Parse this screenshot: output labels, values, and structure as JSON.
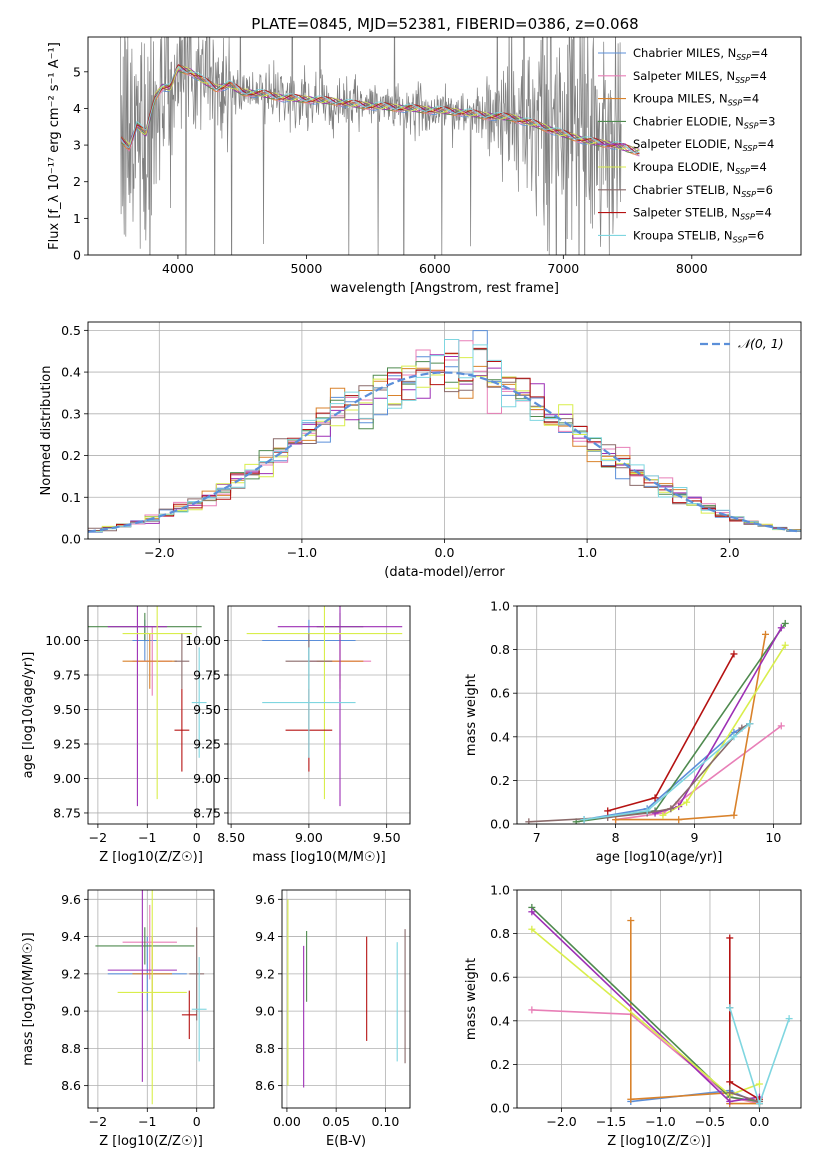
{
  "figure": {
    "title": "PLATE=0845, MJD=52381, FIBERID=0386, z=0.068"
  },
  "models": [
    {
      "name": "Chabrier MILES",
      "nssp": "4",
      "color": "#5b8fd9"
    },
    {
      "name": "Salpeter MILES",
      "nssp": "4",
      "color": "#e87fb7"
    },
    {
      "name": "Kroupa MILES",
      "nssp": "4",
      "color": "#d9822b"
    },
    {
      "name": "Chabrier ELODIE",
      "nssp": "3",
      "color": "#4f8a4f"
    },
    {
      "name": "Salpeter ELODIE",
      "nssp": "4",
      "color": "#9d2fb5"
    },
    {
      "name": "Kroupa ELODIE",
      "nssp": "4",
      "color": "#d9ee4c"
    },
    {
      "name": "Chabrier STELIB",
      "nssp": "6",
      "color": "#8a6a6a"
    },
    {
      "name": "Salpeter STELIB",
      "nssp": "4",
      "color": "#b51212"
    },
    {
      "name": "Kroupa STELIB",
      "nssp": "6",
      "color": "#7fd6e0"
    }
  ],
  "chart_data": [
    {
      "id": "spectrum",
      "type": "line",
      "xlabel": "wavelength [Angstrom, rest frame]",
      "ylabel": "Flux [f_λ 10⁻¹⁷ erg cm⁻² s⁻¹ A⁻¹]",
      "xlim": [
        3300,
        8850
      ],
      "ylim": [
        0,
        5.95
      ],
      "xticks": [
        4000,
        5000,
        6000,
        7000,
        8000
      ],
      "yticks": [
        0,
        1,
        2,
        3,
        4,
        5
      ],
      "grid": false,
      "legend": "top-right",
      "data_color": "#808080",
      "model_continuum": {
        "x": [
          3560,
          3620,
          3680,
          3750,
          3820,
          3880,
          3940,
          4000,
          4100,
          4200,
          4300,
          4400,
          4500,
          4650,
          4800,
          5000,
          5200,
          5400,
          5600,
          5800,
          6000,
          6200,
          6400,
          6600,
          6800,
          7000,
          7200,
          7400,
          7600
        ],
        "y": [
          3.15,
          2.95,
          3.55,
          3.3,
          4.3,
          4.6,
          4.55,
          5.1,
          5.0,
          4.75,
          4.55,
          4.65,
          4.45,
          4.4,
          4.3,
          4.25,
          4.2,
          4.1,
          4.05,
          4.0,
          3.95,
          3.9,
          3.8,
          3.75,
          3.55,
          3.3,
          3.1,
          3.0,
          2.8
        ]
      }
    },
    {
      "id": "residuals",
      "type": "histogram",
      "xlabel": "(data-model)/error",
      "ylabel": "Normed distribution",
      "xlim": [
        -2.5,
        2.5
      ],
      "ylim": [
        0,
        0.52
      ],
      "xticks": [
        -2,
        -1,
        0,
        1,
        2
      ],
      "yticks": [
        0.0,
        0.1,
        0.2,
        0.3,
        0.4,
        0.5
      ],
      "grid": true,
      "legend": "top-right",
      "legend_label": "𝒩(0, 1)",
      "reference_curve": "normal(0,1)",
      "bin_width": 0.1
    },
    {
      "id": "age_vs_z",
      "type": "errorbar",
      "xlabel": "Z [log10(Z/Z☉)]",
      "ylabel": "age [log10(age/yr)]",
      "xlim": [
        -2.2,
        0.35
      ],
      "ylim": [
        8.67,
        10.25
      ],
      "xticks": [
        -2,
        -1,
        0
      ],
      "yticks": [
        8.75,
        9.0,
        9.25,
        9.5,
        9.75,
        10.0
      ],
      "grid": true,
      "points": [
        {
          "model": 0,
          "x": -1.05,
          "y": 10.0,
          "xerr": 0.25,
          "yerr": 0.15
        },
        {
          "model": 1,
          "x": -0.9,
          "y": 9.85,
          "xerr": 0.4,
          "yerr": 0.25
        },
        {
          "model": 2,
          "x": -0.95,
          "y": 9.85,
          "xerr": 0.55,
          "yerr": 0.2
        },
        {
          "model": 3,
          "x": -1.05,
          "y": 10.1,
          "xerr": 1.15,
          "yerr": 0.1
        },
        {
          "model": 4,
          "x": -1.2,
          "y": 10.1,
          "xerr": 0.6,
          "yerr": 1.3
        },
        {
          "model": 5,
          "x": -0.8,
          "y": 10.05,
          "xerr": 0.7,
          "yerr": 1.2
        },
        {
          "model": 6,
          "x": -0.3,
          "y": 9.85,
          "xerr": 0.15,
          "yerr": 0.2
        },
        {
          "model": 7,
          "x": -0.3,
          "y": 9.35,
          "xerr": 0.15,
          "yerr": 0.3
        },
        {
          "model": 8,
          "x": 0.05,
          "y": 9.55,
          "xerr": 0.15,
          "yerr": 0.4
        }
      ]
    },
    {
      "id": "age_vs_mass",
      "type": "errorbar",
      "xlabel": "mass [log10(M/M☉)]",
      "ylabel": "",
      "xlim": [
        8.48,
        9.65
      ],
      "ylim": [
        8.67,
        10.25
      ],
      "xticks": [
        8.5,
        9.0,
        9.5
      ],
      "yticks": [
        8.75,
        9.0,
        9.25,
        9.5,
        9.75,
        10.0
      ],
      "grid": true,
      "points": [
        {
          "model": 0,
          "x": 9.0,
          "y": 10.0,
          "xerr": 0.3,
          "yerr": 0.15
        },
        {
          "model": 1,
          "x": 9.2,
          "y": 9.85,
          "xerr": 0.2,
          "yerr": 0.15
        },
        {
          "model": 2,
          "x": 9.2,
          "y": 9.85,
          "xerr": 0.15,
          "yerr": 0.2
        },
        {
          "model": 3,
          "x": 9.2,
          "y": 10.1,
          "xerr": 0.15,
          "yerr": 0.1
        },
        {
          "model": 4,
          "x": 9.2,
          "y": 10.1,
          "xerr": 0.4,
          "yerr": 1.3
        },
        {
          "model": 5,
          "x": 9.1,
          "y": 10.05,
          "xerr": 0.5,
          "yerr": 1.2
        },
        {
          "model": 6,
          "x": 9.0,
          "y": 9.85,
          "xerr": 0.15,
          "yerr": 0.2
        },
        {
          "model": 7,
          "x": 9.0,
          "y": 9.35,
          "xerr": 0.15,
          "yerr": 0.3
        },
        {
          "model": 8,
          "x": 9.0,
          "y": 9.55,
          "xerr": 0.3,
          "yerr": 0.4
        }
      ]
    },
    {
      "id": "weight_vs_age",
      "type": "line",
      "xlabel": "age [log10(age/yr)]",
      "ylabel": "mass weight",
      "xlim": [
        6.75,
        10.35
      ],
      "ylim": [
        0,
        1.0
      ],
      "xticks": [
        7,
        8,
        9,
        10
      ],
      "yticks": [
        0.0,
        0.2,
        0.4,
        0.6,
        0.8,
        1.0
      ],
      "grid": true,
      "series": [
        {
          "model": 0,
          "x": [
            7.6,
            8.4,
            9.5,
            9.7
          ],
          "y": [
            0.02,
            0.07,
            0.42,
            0.46
          ]
        },
        {
          "model": 1,
          "x": [
            8.0,
            8.6,
            8.8,
            10.1
          ],
          "y": [
            0.02,
            0.05,
            0.1,
            0.45
          ]
        },
        {
          "model": 2,
          "x": [
            8.0,
            8.8,
            9.5,
            9.9
          ],
          "y": [
            0.02,
            0.02,
            0.04,
            0.87
          ]
        },
        {
          "model": 3,
          "x": [
            7.5,
            8.5,
            10.15
          ],
          "y": [
            0.01,
            0.06,
            0.92
          ]
        },
        {
          "model": 4,
          "x": [
            8.5,
            8.8,
            10.1
          ],
          "y": [
            0.05,
            0.08,
            0.9
          ]
        },
        {
          "model": 5,
          "x": [
            8.6,
            8.9,
            10.15
          ],
          "y": [
            0.04,
            0.1,
            0.82
          ]
        },
        {
          "model": 6,
          "x": [
            6.9,
            7.9,
            8.4,
            8.7,
            9.6,
            9.7
          ],
          "y": [
            0.01,
            0.03,
            0.05,
            0.07,
            0.44,
            0.46
          ]
        },
        {
          "model": 7,
          "x": [
            7.9,
            8.5,
            9.5
          ],
          "y": [
            0.06,
            0.12,
            0.78
          ]
        },
        {
          "model": 8,
          "x": [
            7.6,
            8.4,
            9.5,
            9.7
          ],
          "y": [
            0.02,
            0.06,
            0.4,
            0.46
          ]
        }
      ]
    },
    {
      "id": "mass_vs_z",
      "type": "errorbar",
      "xlabel": "Z [log10(Z/Z☉)]",
      "ylabel": "mass [log10(M/M☉)]",
      "xlim": [
        -2.2,
        0.35
      ],
      "ylim": [
        8.48,
        9.65
      ],
      "xticks": [
        -2,
        -1,
        0
      ],
      "yticks": [
        8.6,
        8.8,
        9.0,
        9.2,
        9.4,
        9.6
      ],
      "grid": true,
      "points": [
        {
          "model": 0,
          "x": -1.0,
          "y": 9.2,
          "xerr": 0.8,
          "yerr": 0.2
        },
        {
          "model": 1,
          "x": -0.95,
          "y": 9.37,
          "xerr": 0.55,
          "yerr": 0.2
        },
        {
          "model": 2,
          "x": -0.9,
          "y": 9.2,
          "xerr": 0.4,
          "yerr": 0.2
        },
        {
          "model": 3,
          "x": -1.05,
          "y": 9.35,
          "xerr": 1.0,
          "yerr": 0.1
        },
        {
          "model": 4,
          "x": -1.1,
          "y": 9.22,
          "xerr": 0.7,
          "yerr": 0.6
        },
        {
          "model": 5,
          "x": -0.9,
          "y": 9.1,
          "xerr": 0.7,
          "yerr": 0.6
        },
        {
          "model": 6,
          "x": 0.0,
          "y": 9.2,
          "xerr": 0.15,
          "yerr": 0.25
        },
        {
          "model": 7,
          "x": -0.15,
          "y": 8.98,
          "xerr": 0.15,
          "yerr": 0.13
        },
        {
          "model": 8,
          "x": 0.05,
          "y": 9.01,
          "xerr": 0.15,
          "yerr": 0.28
        }
      ]
    },
    {
      "id": "mass_vs_ebv",
      "type": "errorbar",
      "xlabel": "E(B-V)",
      "ylabel": "",
      "xlim": [
        -0.005,
        0.125
      ],
      "ylim": [
        8.48,
        9.65
      ],
      "xticks": [
        0.0,
        0.05,
        0.1
      ],
      "yticks": [
        8.6,
        8.8,
        9.0,
        9.2,
        9.4,
        9.6
      ],
      "grid": true,
      "points": [
        {
          "model": 5,
          "x": 0.001,
          "y": 9.1,
          "xerr": 0,
          "yerr": 0.5
        },
        {
          "model": 4,
          "x": 0.017,
          "y": 8.97,
          "xerr": 0,
          "yerr": 0.38
        },
        {
          "model": 3,
          "x": 0.02,
          "y": 9.24,
          "xerr": 0,
          "yerr": 0.19
        },
        {
          "model": 7,
          "x": 0.081,
          "y": 9.12,
          "xerr": 0,
          "yerr": 0.28
        },
        {
          "model": 8,
          "x": 0.112,
          "y": 9.05,
          "xerr": 0,
          "yerr": 0.32
        },
        {
          "model": 6,
          "x": 0.12,
          "y": 9.08,
          "xerr": 0,
          "yerr": 0.36
        }
      ]
    },
    {
      "id": "weight_vs_z",
      "type": "line",
      "xlabel": "Z [log10(Z/Z☉)]",
      "ylabel": "mass weight",
      "xlim": [
        -2.45,
        0.42
      ],
      "ylim": [
        0,
        1.0
      ],
      "xticks": [
        -2.0,
        -1.5,
        -1.0,
        -0.5,
        0.0
      ],
      "yticks": [
        0.0,
        0.2,
        0.4,
        0.6,
        0.8,
        1.0
      ],
      "grid": true,
      "series": [
        {
          "model": 0,
          "x": [
            -1.3,
            -0.3,
            0.0
          ],
          "y": [
            0.03,
            0.08,
            0.02
          ]
        },
        {
          "model": 1,
          "x": [
            -2.3,
            -1.3,
            -0.3,
            0.0
          ],
          "y": [
            0.45,
            0.43,
            0.05,
            0.02
          ]
        },
        {
          "model": 2,
          "x": [
            -1.3,
            -1.3,
            -0.3,
            -0.3,
            0.0
          ],
          "y": [
            0.86,
            0.04,
            0.07,
            0.02,
            0.02
          ]
        },
        {
          "model": 3,
          "x": [
            -2.3,
            -0.3,
            0.0
          ],
          "y": [
            0.92,
            0.05,
            0.03
          ]
        },
        {
          "model": 4,
          "x": [
            -2.3,
            -0.3,
            0.0
          ],
          "y": [
            0.9,
            0.03,
            0.05
          ]
        },
        {
          "model": 5,
          "x": [
            -2.3,
            -0.3,
            0.0
          ],
          "y": [
            0.82,
            0.06,
            0.11
          ]
        },
        {
          "model": 6,
          "x": [
            -0.3,
            -0.3,
            0.0
          ],
          "y": [
            0.46,
            0.07,
            0.03
          ]
        },
        {
          "model": 7,
          "x": [
            -0.3,
            -0.3,
            0.0
          ],
          "y": [
            0.78,
            0.12,
            0.04
          ]
        },
        {
          "model": 8,
          "x": [
            -0.3,
            0.0,
            0.3
          ],
          "y": [
            0.46,
            0.02,
            0.41
          ]
        }
      ]
    }
  ]
}
